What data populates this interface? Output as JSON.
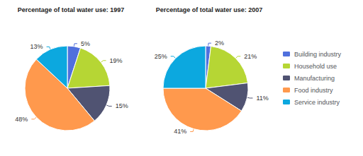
{
  "chart_data": [
    {
      "type": "pie",
      "title": "Percentage of total water use: 1997",
      "categories": [
        "Building industry",
        "Household use",
        "Manufacturing",
        "Food industry",
        "Service industry"
      ],
      "values": [
        5,
        19,
        15,
        48,
        13
      ],
      "value_labels": [
        "5%",
        "19%",
        "15%",
        "48%",
        "13%"
      ],
      "data_labels": true
    },
    {
      "type": "pie",
      "title": "Percentage of total water use: 2007",
      "categories": [
        "Building industry",
        "Household use",
        "Manufacturing",
        "Food industry",
        "Service industry"
      ],
      "values": [
        2,
        21,
        11,
        41,
        25
      ],
      "value_labels": [
        "2%",
        "21%",
        "11%",
        "41%",
        "25%"
      ],
      "data_labels": true,
      "legend": "right"
    }
  ]
}
